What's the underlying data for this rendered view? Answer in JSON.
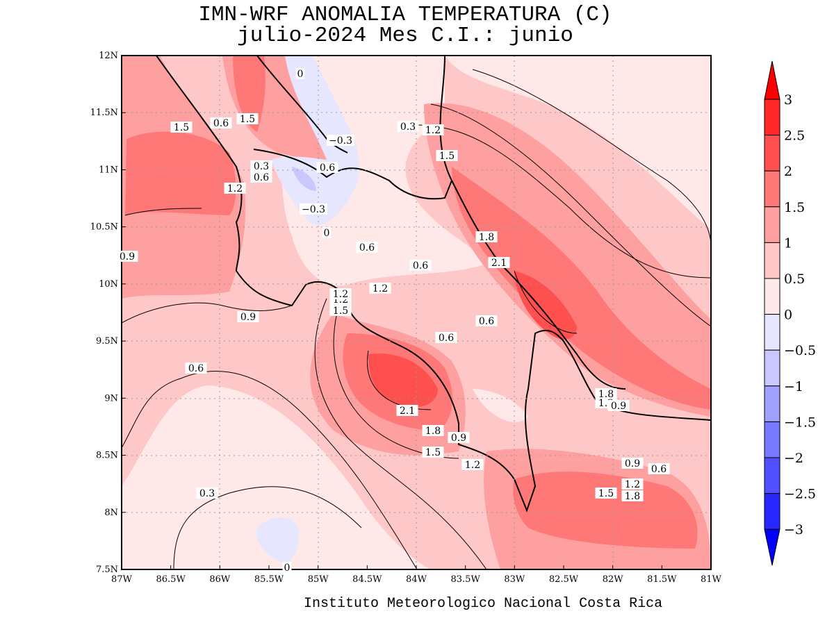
{
  "title": {
    "line1": "IMN-WRF  ANOMALIA TEMPERATURA (C)",
    "line2": "julio-2024 Mes C.I.: junio"
  },
  "footer": "Instituto Meteorologico Nacional Costa Rica",
  "map": {
    "lat_labels": [
      "12N",
      "11.5N",
      "11N",
      "10.5N",
      "10N",
      "9.5N",
      "9N",
      "8.5N",
      "8N",
      "7.5N"
    ],
    "lon_labels": [
      "87W",
      "86.5W",
      "86W",
      "85.5W",
      "85W",
      "84.5W",
      "84W",
      "83.5W",
      "83W",
      "82.5W",
      "82W",
      "81.5W",
      "81W"
    ],
    "contour_labels": [
      "1.5",
      "0.6",
      "1.5",
      "0",
      "-0.3",
      "0.3",
      "0.6",
      "0.6",
      "1.2",
      "-0.3",
      "0",
      "0.9",
      "1.2",
      "1.5",
      "0.3",
      "0.6",
      "1.8",
      "2.1",
      "0.6",
      "1.2",
      "1.2",
      "1.5",
      "0.9",
      "0.6",
      "0.6",
      "2.1",
      "1.8",
      "0.9",
      "1.5",
      "1.2",
      "1.8",
      "1.2",
      "0.9",
      "0.9",
      "0.6",
      "1.2",
      "1.8",
      "1.5",
      "0.6",
      "0.3",
      "0",
      "1.2"
    ]
  },
  "colorbar": {
    "labels": [
      "3",
      "2.5",
      "2",
      "1.5",
      "1",
      "0.5",
      "0",
      "−0.5",
      "−1",
      "−1.5",
      "−2",
      "−2.5",
      "−3"
    ],
    "colors": [
      "#ff0000",
      "#ff2828",
      "#ff5050",
      "#ff7878",
      "#ffa0a0",
      "#ffc8c8",
      "#ffe8e8",
      "#e6e6ff",
      "#c8c8ff",
      "#a0a0ff",
      "#7878ff",
      "#5050ff",
      "#2828ff",
      "#0000ff"
    ]
  }
}
